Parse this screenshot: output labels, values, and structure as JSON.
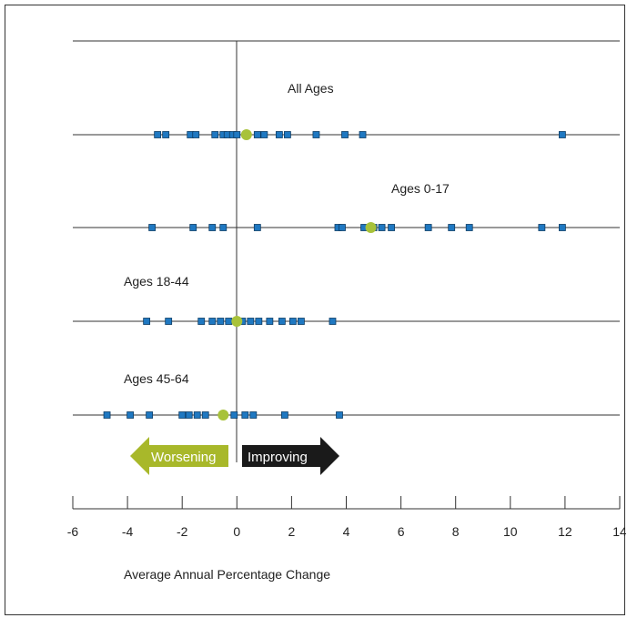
{
  "chart_data": {
    "type": "scatter",
    "title": "",
    "xlabel": "Average Annual Percentage Change",
    "ylabel": "",
    "xlim": [
      -6,
      14
    ],
    "xticks": [
      -6,
      -4,
      -2,
      0,
      2,
      4,
      6,
      8,
      10,
      12,
      14
    ],
    "grid": false,
    "series": [
      {
        "name": "All Ages",
        "points": [
          -2.9,
          -2.6,
          -1.7,
          -1.5,
          -0.8,
          -0.5,
          -0.35,
          -0.15,
          0.0,
          0.75,
          1.0,
          1.55,
          1.85,
          2.9,
          3.95,
          4.6,
          11.9
        ],
        "mean": 0.35
      },
      {
        "name": "Ages 0-17",
        "points": [
          -3.1,
          -1.6,
          -0.9,
          -0.5,
          0.75,
          3.7,
          3.85,
          4.65,
          5.0,
          5.3,
          5.65,
          7.0,
          7.85,
          8.5,
          11.15,
          11.9
        ],
        "mean": 4.9
      },
      {
        "name": "Ages 18-44",
        "points": [
          -3.3,
          -2.5,
          -1.3,
          -0.9,
          -0.6,
          -0.3,
          0.2,
          0.5,
          0.8,
          1.2,
          1.65,
          2.05,
          2.35,
          3.5
        ],
        "mean": 0.0
      },
      {
        "name": "Ages 45-64",
        "points": [
          -4.75,
          -3.9,
          -3.2,
          -2.0,
          -1.75,
          -1.45,
          -1.15,
          -0.1,
          0.3,
          0.6,
          1.75,
          3.75
        ],
        "mean": -0.5
      }
    ],
    "colors": {
      "point": "#1f78c1",
      "point_edge": "#0d3d66",
      "mean": "#a8c23a",
      "worsening": "#a8b82a",
      "improving": "#1a1a1a"
    },
    "annotations": {
      "worsening": "Worsening",
      "improving": "Improving"
    }
  }
}
